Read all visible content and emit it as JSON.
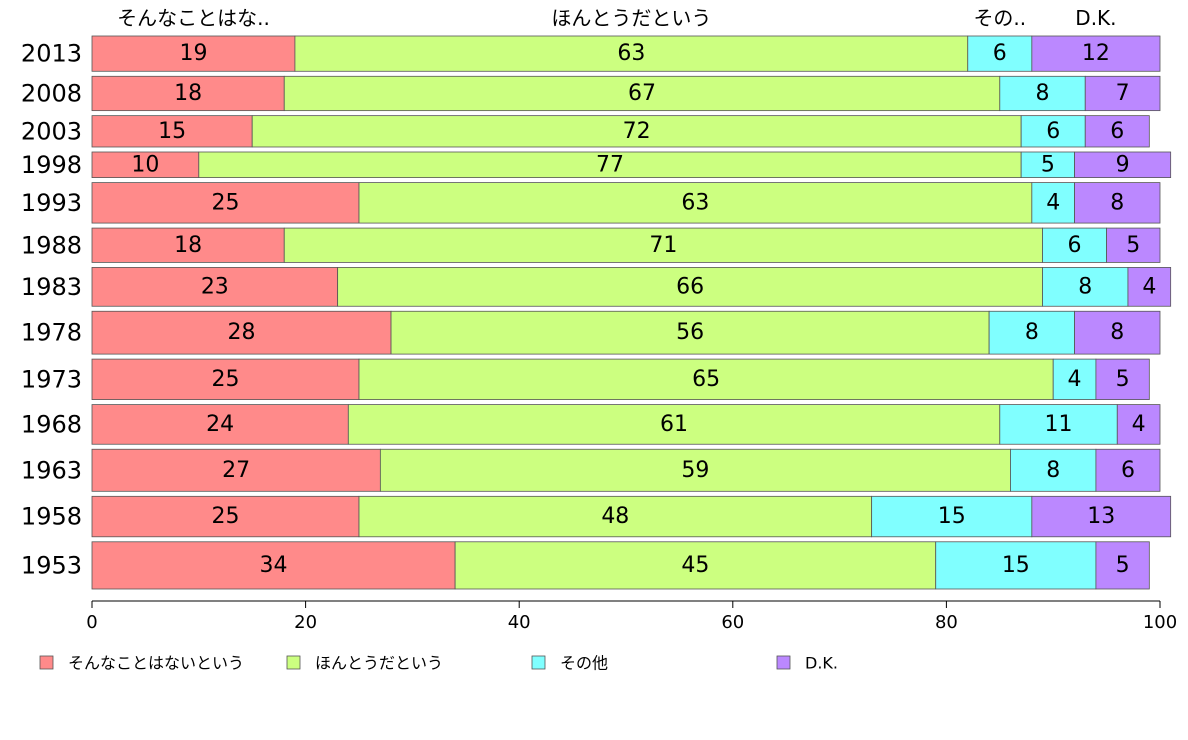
{
  "chart_data": {
    "type": "bar",
    "orientation": "horizontal",
    "stacked": true,
    "categories": [
      "2013",
      "2008",
      "2003",
      "1998",
      "1993",
      "1988",
      "1983",
      "1978",
      "1973",
      "1968",
      "1963",
      "1958",
      "1953"
    ],
    "series": [
      {
        "name": "そんなことはないという",
        "header": "そんなことはな..",
        "color": "#ff8a8a",
        "values": [
          19,
          18,
          15,
          10,
          25,
          18,
          23,
          28,
          25,
          24,
          27,
          25,
          34
        ]
      },
      {
        "name": "ほんとうだという",
        "header": "ほんとうだという",
        "color": "#ccff80",
        "values": [
          63,
          67,
          72,
          77,
          63,
          71,
          66,
          56,
          65,
          61,
          59,
          48,
          45
        ]
      },
      {
        "name": "その他",
        "header": "その..",
        "color": "#80ffff",
        "values": [
          6,
          8,
          6,
          5,
          4,
          6,
          8,
          8,
          4,
          11,
          8,
          15,
          15
        ]
      },
      {
        "name": "D.K.",
        "header": "D.K.",
        "color": "#bb88ff",
        "values": [
          12,
          7,
          6,
          9,
          8,
          5,
          4,
          8,
          5,
          4,
          6,
          13,
          5
        ]
      }
    ],
    "row_weights": [
      19,
      18,
      15,
      10,
      25,
      18,
      23,
      28,
      25,
      24,
      27,
      25,
      34
    ],
    "xlim": [
      0,
      100
    ],
    "xticks": [
      0,
      20,
      40,
      60,
      80,
      100
    ],
    "legend_position": "bottom",
    "grid": false
  }
}
